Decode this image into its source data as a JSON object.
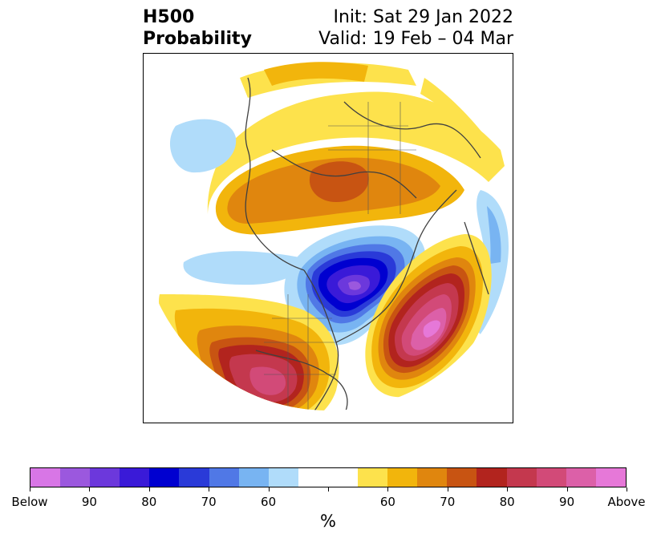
{
  "header": {
    "title_line1": "H500",
    "title_line2": "Probability",
    "init_text": "Init: Sat 29 Jan 2022",
    "valid_text": "Valid: 19 Feb – 04 Mar"
  },
  "map": {
    "projection": "polar stereographic (North Pole)",
    "regions": [
      {
        "name": "western-north-america-anomaly",
        "category": "above",
        "peak_percent": 90
      },
      {
        "name": "atlantic-anomaly",
        "category": "above",
        "peak_percent": 100
      },
      {
        "name": "canada-anomaly",
        "category": "below",
        "peak_percent": 95
      },
      {
        "name": "eurasia-anomaly",
        "category": "above",
        "peak_percent": 70
      },
      {
        "name": "pacific-anomaly",
        "category": "below",
        "peak_percent": 60
      }
    ]
  },
  "colorbar": {
    "unit_label": "%",
    "colors": [
      "#d876e6",
      "#9b58de",
      "#6c38dc",
      "#3a1ad8",
      "#0000d0",
      "#2a3ad8",
      "#5078e6",
      "#78b4f2",
      "#b0dcfa",
      "#ffffff",
      "#ffffff",
      "#fde24c",
      "#f2b50c",
      "#e0860e",
      "#c85412",
      "#b2241e",
      "#c4384e",
      "#d24a78",
      "#dc60a8",
      "#e678d8"
    ],
    "tick_labels": [
      "Below",
      "90",
      "80",
      "70",
      "60",
      "",
      "60",
      "70",
      "80",
      "90",
      "Above"
    ]
  }
}
